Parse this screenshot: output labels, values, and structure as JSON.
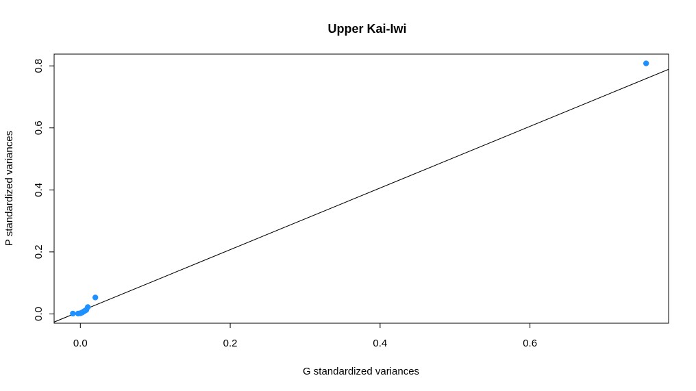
{
  "chart_data": {
    "type": "scatter",
    "title": "Upper Kai-Iwi",
    "xlabel": "G standardized variances",
    "ylabel": "P standardized variances",
    "xlim": [
      -0.035,
      0.785
    ],
    "ylim": [
      -0.03,
      0.838
    ],
    "x_ticks": [
      0.0,
      0.2,
      0.4,
      0.6
    ],
    "x_tick_labels": [
      "0.0",
      "0.2",
      "0.4",
      "0.6"
    ],
    "y_ticks": [
      0.0,
      0.2,
      0.4,
      0.6,
      0.8
    ],
    "y_tick_labels": [
      "0.0",
      "0.2",
      "0.4",
      "0.6",
      "0.8"
    ],
    "point_color": "#1e90ff",
    "line_color": "#000000",
    "grid": false,
    "legend": "none",
    "series": [
      {
        "x": [
          -0.01,
          -0.003,
          0.0,
          0.002,
          0.004,
          0.006,
          0.008,
          0.01,
          0.02,
          0.755
        ],
        "y": [
          0.001,
          0.001,
          0.002,
          0.004,
          0.007,
          0.01,
          0.013,
          0.022,
          0.053,
          0.808
        ]
      }
    ],
    "reference_line": {
      "type": "abline",
      "intercept": 0.0085,
      "slope": 0.994
    }
  }
}
